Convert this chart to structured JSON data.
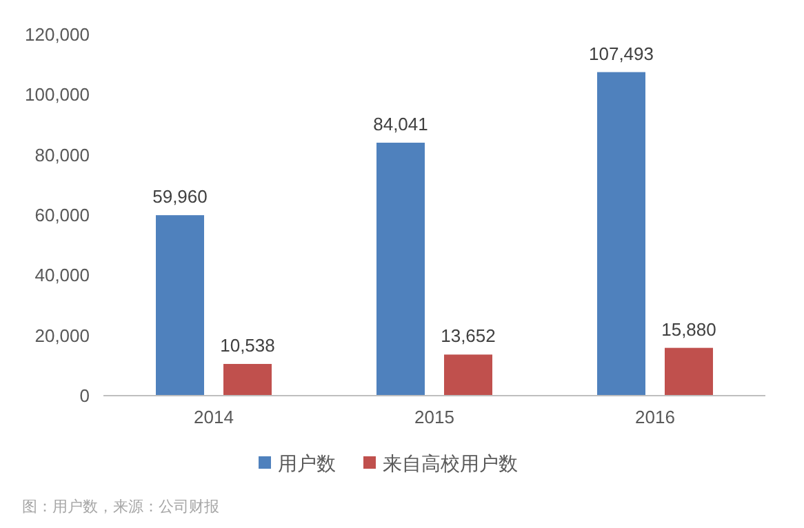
{
  "chart_data": {
    "type": "bar",
    "categories": [
      "2014",
      "2015",
      "2016"
    ],
    "series": [
      {
        "name": "用户数",
        "color": "#4f81bd",
        "values": [
          59960,
          84041,
          107493
        ],
        "value_labels": [
          "59,960",
          "84,041",
          "107,493"
        ]
      },
      {
        "name": "来自高校用户数",
        "color": "#c0504d",
        "values": [
          10538,
          13652,
          15880
        ],
        "value_labels": [
          "10,538",
          "13,652",
          "15,880"
        ]
      }
    ],
    "ylim": [
      0,
      120000
    ],
    "yticks": [
      0,
      {
        "value": 20000,
        "label": "20,000"
      },
      {
        "value": 40000,
        "label": "40,000"
      },
      {
        "value": 60000,
        "label": "60,000"
      },
      {
        "value": 80000,
        "label": "80,000"
      },
      {
        "value": 100000,
        "label": "100,000"
      },
      {
        "value": 120000,
        "label": "120,000"
      }
    ],
    "grid": false,
    "legend": "bottom",
    "annotations": [
      "图：用户数，来源：公司财报"
    ]
  }
}
